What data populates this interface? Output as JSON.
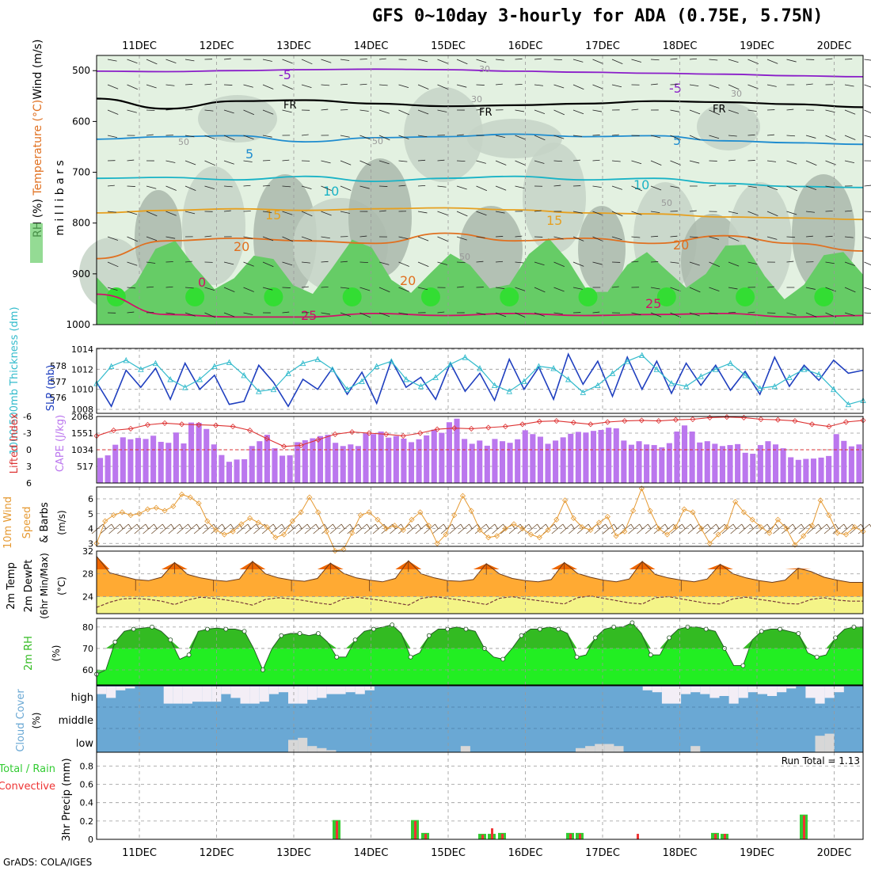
{
  "title": "GFS 0~10day 3-hourly for ADA (0.75E, 5.75N)",
  "credit": "GrADS: COLA/IGES",
  "colors": {
    "rh_light": "#e3f1e1",
    "rh_mid": "#c6d4c7",
    "rh_dark": "#aab8ac",
    "rh_green": "#66cc66",
    "rh_bright": "#33dd33",
    "temp_purple": "#8a1dc9",
    "temp_black": "#000000",
    "temp_blue": "#1e8ccf",
    "temp_cyan": "#19b3c6",
    "temp_orange": "#e6a020",
    "temp_dkorange": "#e07020",
    "temp_magenta": "#d0106a",
    "thick": "#1f3fbf",
    "slp": "#33bbcc",
    "cape": "#bb77ee",
    "li": "#dd3333",
    "wind": "#e69a33",
    "t2m_dark": "#ee6600",
    "t2m": "#ffaa33",
    "dewpt_fill": "#f4f488",
    "rh2m_dark": "#33bb22",
    "rh2m_bright": "#22ee22",
    "rh2m_light": "#55dd55",
    "cloud": "#6aa8d4",
    "cloud_gray": "#d7d7d7",
    "cloud_white": "#f3eef6",
    "rain": "#33cc33",
    "conv": "#ee3333"
  },
  "chart_data": [
    {
      "id": "upper_air",
      "type": "heatmap",
      "ylabel": "m i l l i b a r s",
      "legend": [
        "RH (%)",
        "Temperature (°C)",
        "Wind (m/s)"
      ],
      "yticks": [
        "500",
        "600",
        "700",
        "800",
        "900",
        "1000"
      ],
      "ylim": [
        1000,
        470
      ],
      "xticks": [
        "11DEC",
        "12DEC",
        "13DEC",
        "14DEC",
        "15DEC",
        "16DEC",
        "17DEC",
        "18DEC",
        "19DEC",
        "20DEC"
      ],
      "contour_labels": [
        "-5",
        "FR",
        "5",
        "10",
        "15",
        "20",
        "0",
        "25",
        "30",
        "50"
      ],
      "isotherms": [
        {
          "name": "-5",
          "values": [
            501,
            502,
            500,
            498,
            497,
            498,
            501,
            503,
            505,
            507,
            510,
            512
          ]
        },
        {
          "name": "FR",
          "values": [
            555,
            575,
            560,
            558,
            565,
            570,
            568,
            565,
            560,
            562,
            566,
            572
          ]
        },
        {
          "name": "5",
          "values": [
            635,
            630,
            628,
            640,
            632,
            630,
            625,
            630,
            628,
            638,
            642,
            645
          ]
        },
        {
          "name": "10",
          "values": [
            712,
            710,
            715,
            708,
            718,
            712,
            708,
            715,
            712,
            722,
            728,
            730
          ]
        },
        {
          "name": "15",
          "values": [
            780,
            775,
            772,
            775,
            772,
            770,
            774,
            780,
            782,
            788,
            790,
            793
          ]
        },
        {
          "name": "20",
          "values": [
            870,
            835,
            830,
            835,
            840,
            820,
            835,
            830,
            840,
            825,
            840,
            855
          ]
        },
        {
          "name": "25",
          "values": [
            940,
            980,
            985,
            985,
            978,
            982,
            978,
            982,
            980,
            978,
            985,
            982
          ]
        }
      ]
    },
    {
      "id": "thickness_slp",
      "type": "line",
      "left_label": "1000-500mb Thickness (dm)",
      "right_label": "SLP (mb)",
      "yticks_left": [
        "578",
        "577",
        "576"
      ],
      "yticks_right": [
        "1014",
        "1012",
        "1010",
        "1008"
      ],
      "ylim_slp": [
        1008,
        1014
      ],
      "series": [
        {
          "name": "Thickness",
          "values": [
            1010.7,
            1008.3,
            1011.9,
            1010.2,
            1012.1,
            1009.0,
            1012.6,
            1010.0,
            1011.4,
            1008.5,
            1008.8,
            1012.4,
            1010.7,
            1008.3,
            1011.0,
            1010.0,
            1012.1,
            1009.5,
            1011.7,
            1008.6,
            1012.9,
            1010.2,
            1011.2,
            1009.0,
            1012.6,
            1009.8,
            1011.6,
            1008.9,
            1013.0,
            1010.0,
            1012.2,
            1009.0,
            1013.5,
            1010.5,
            1012.8,
            1009.3,
            1013.2,
            1010.0,
            1012.8,
            1009.6,
            1012.6,
            1010.4,
            1012.4,
            1009.9,
            1011.8,
            1009.5,
            1013.2,
            1010.3,
            1012.4,
            1010.9,
            1012.9,
            1011.6,
            1011.9
          ]
        },
        {
          "name": "SLP",
          "values": [
            1010.6,
            1012.3,
            1012.9,
            1012.0,
            1012.6,
            1011.0,
            1010.2,
            1011.0,
            1012.3,
            1012.7,
            1011.4,
            1009.8,
            1010.0,
            1011.6,
            1012.6,
            1013.0,
            1012.0,
            1010.0,
            1010.8,
            1012.3,
            1012.8,
            1011.0,
            1010.3,
            1011.2,
            1012.5,
            1013.2,
            1012.1,
            1010.4,
            1009.8,
            1010.8,
            1012.3,
            1012.1,
            1011.0,
            1009.7,
            1010.4,
            1011.6,
            1012.8,
            1013.4,
            1012.0,
            1010.6,
            1010.3,
            1011.3,
            1012.0,
            1012.6,
            1011.4,
            1010.1,
            1010.3,
            1011.2,
            1012.0,
            1011.5,
            1010.0,
            1008.5,
            1008.9
          ]
        }
      ]
    },
    {
      "id": "cape_li",
      "type": "bar",
      "left_label": "Lifted Index",
      "right_label": "CAPE (J/kg)",
      "yticks_left": [
        "-6",
        "-3",
        "0",
        "3",
        "6"
      ],
      "yticks_right": [
        "2068",
        "1551",
        "1034",
        "517"
      ],
      "ylim_cape": [
        0,
        2068
      ],
      "series": [
        {
          "name": "CAPE",
          "values": [
            780,
            860,
            1190,
            1420,
            1360,
            1400,
            1370,
            1470,
            1280,
            1250,
            1570,
            1230,
            1880,
            1870,
            1680,
            1200,
            870,
            660,
            730,
            740,
            1150,
            1300,
            1500,
            1080,
            850,
            860,
            1270,
            1330,
            1390,
            1460,
            1500,
            1250,
            1150,
            1200,
            1150,
            1540,
            1520,
            1600,
            1410,
            1460,
            1380,
            1270,
            1360,
            1480,
            1660,
            1560,
            1890,
            2000,
            1370,
            1220,
            1320,
            1160,
            1370,
            1300,
            1250,
            1360,
            1640,
            1520,
            1440,
            1220,
            1320,
            1420,
            1530,
            1590,
            1570,
            1620,
            1650,
            1720,
            1700,
            1320,
            1190,
            1300,
            1200,
            1180,
            1110,
            1240,
            1600,
            1790,
            1600,
            1260,
            1300,
            1220,
            1150,
            1180,
            1210,
            940,
            910,
            1180,
            1300,
            1200,
            1080,
            800,
            720,
            750,
            760,
            790,
            840,
            1520,
            1310,
            1140,
            1200
          ],
          "note": "3-hourly bars"
        },
        {
          "name": "Lifted Index",
          "values": [
            -2.5,
            -3.5,
            -3.8,
            -4.5,
            -4.8,
            -4.6,
            -4.5,
            -4.4,
            -4.2,
            -3.5,
            -2.0,
            -0.6,
            -0.8,
            -1.8,
            -2.8,
            -3.2,
            -3.0,
            -2.8,
            -2.5,
            -3.0,
            -3.7,
            -3.9,
            -3.8,
            -4.0,
            -4.2,
            -4.6,
            -5.1,
            -5.2,
            -4.9,
            -4.6,
            -5.0,
            -5.2,
            -5.3,
            -5.2,
            -5.4,
            -5.5,
            -5.8,
            -5.9,
            -5.8,
            -5.5,
            -5.4,
            -5.2,
            -4.6,
            -4.2,
            -5.0,
            -5.3
          ]
        }
      ]
    },
    {
      "id": "wind10m",
      "type": "line",
      "ylabel": "10m Wind Speed & Barbs (m/s)",
      "yticks": [
        "6",
        "5",
        "4",
        "3"
      ],
      "ylim": [
        2.8,
        6.8
      ],
      "series": [
        {
          "name": "Speed",
          "values": [
            3.0,
            4.5,
            4.9,
            5.1,
            4.9,
            5.0,
            5.3,
            5.4,
            5.2,
            5.5,
            6.3,
            6.1,
            5.7,
            4.5,
            3.9,
            3.6,
            3.8,
            4.3,
            4.7,
            4.4,
            4.1,
            3.4,
            3.6,
            4.5,
            5.1,
            6.1,
            5.1,
            3.8,
            2.5,
            2.6,
            3.7,
            4.9,
            5.1,
            4.6,
            4.0,
            4.2,
            3.9,
            4.6,
            5.1,
            4.2,
            3.0,
            3.6,
            4.9,
            6.2,
            5.2,
            3.9,
            3.4,
            3.5,
            4.0,
            4.3,
            4.0,
            3.6,
            3.4,
            3.9,
            4.6,
            5.9,
            4.7,
            4.1,
            3.9,
            4.4,
            4.8,
            3.5,
            3.8,
            5.2,
            6.7,
            5.2,
            4.0,
            3.6,
            4.1,
            5.3,
            5.1,
            4.0,
            3.0,
            3.6,
            4.1,
            5.8,
            5.1,
            4.6,
            4.1,
            3.7,
            4.6,
            4.0,
            2.9,
            3.5,
            4.2,
            5.9,
            4.9,
            3.7,
            3.6,
            4.1,
            3.8
          ]
        }
      ]
    },
    {
      "id": "temp2m",
      "type": "area",
      "ylabel": "2m Temp 2m DewPt (6hr Min/Max) (°C)",
      "yticks": [
        "32",
        "28",
        "24"
      ],
      "ylim": [
        21,
        32
      ],
      "series": [
        {
          "name": "Temp",
          "values": [
            31.1,
            28.2,
            27.6,
            27.0,
            26.8,
            27.4,
            30.0,
            27.9,
            27.3,
            26.9,
            26.7,
            27.1,
            30.2,
            28.0,
            27.3,
            26.9,
            26.7,
            27.2,
            29.9,
            28.1,
            27.3,
            26.9,
            26.6,
            27.2,
            30.3,
            28.0,
            27.3,
            26.8,
            26.7,
            27.0,
            29.8,
            28.0,
            27.2,
            26.8,
            26.6,
            27.0,
            30.0,
            28.1,
            27.4,
            26.9,
            26.6,
            27.1,
            30.2,
            27.9,
            27.3,
            26.9,
            26.6,
            27.1,
            29.7,
            28.0,
            27.3,
            26.8,
            26.5,
            26.9,
            29.0,
            28.4,
            27.4,
            26.9,
            26.5,
            26.5
          ]
        },
        {
          "name": "DewPt",
          "values": [
            22.1,
            23.0,
            23.6,
            23.7,
            23.5,
            23.2,
            22.6,
            23.4,
            23.9,
            23.7,
            23.4,
            23.0,
            22.5,
            23.5,
            23.8,
            23.6,
            23.3,
            22.9,
            22.6,
            23.6,
            23.9,
            23.6,
            23.3,
            22.9,
            22.5,
            23.7,
            24.0,
            23.7,
            23.4,
            23.0,
            22.6,
            23.7,
            24.0,
            23.6,
            23.3,
            23.0,
            22.7,
            23.8,
            24.1,
            23.7,
            23.3,
            22.9,
            22.7,
            23.8,
            24.0,
            23.6,
            23.2,
            22.8,
            22.7,
            23.6,
            23.9,
            23.5,
            23.2,
            22.8,
            22.7,
            23.5,
            23.8,
            23.4,
            23.2,
            23.2
          ]
        }
      ]
    },
    {
      "id": "rh2m",
      "type": "area",
      "ylabel": "2m RH (%)",
      "yticks": [
        "80",
        "70",
        "60"
      ],
      "ylim": [
        53,
        84
      ],
      "series": [
        {
          "name": "RH",
          "values": [
            58,
            60,
            73,
            78,
            79,
            79.5,
            80,
            78,
            74,
            65,
            67,
            78,
            79,
            79.5,
            79,
            79,
            78,
            70,
            60,
            70,
            76,
            77,
            77,
            76,
            77,
            73,
            66,
            66,
            74,
            78,
            79,
            80,
            81,
            77,
            66,
            68,
            76,
            79,
            79,
            80,
            79,
            78,
            70,
            66,
            65,
            70,
            76,
            79,
            79,
            80,
            79,
            77,
            66,
            67,
            75,
            79,
            80,
            80,
            82,
            77,
            67,
            67,
            75,
            79,
            80,
            80,
            79,
            78,
            70,
            62,
            62,
            74,
            78,
            79,
            79,
            78,
            77,
            68,
            66,
            67,
            75,
            79,
            80,
            80
          ]
        }
      ]
    },
    {
      "id": "cloud",
      "type": "area",
      "ylabel": "Cloud Cover (%)",
      "yticks": [
        "high",
        "middle",
        "low"
      ],
      "series": [
        {
          "name": "high",
          "values": [
            40,
            60,
            20,
            10,
            0,
            0,
            0,
            90,
            90,
            90,
            80,
            80,
            80,
            40,
            60,
            90,
            90,
            80,
            40,
            30,
            90,
            90,
            70,
            60,
            40,
            40,
            30,
            40,
            20,
            0,
            0,
            0,
            0,
            0,
            0,
            0,
            0,
            0,
            0,
            0,
            0,
            0,
            0,
            0,
            0,
            0,
            0,
            0,
            0,
            0,
            0,
            0,
            0,
            0,
            0,
            0,
            0,
            20,
            30,
            90,
            90,
            40,
            30,
            40,
            60,
            50,
            90,
            60,
            30,
            40,
            50,
            30,
            10,
            0,
            60,
            90,
            60,
            30,
            0,
            0
          ]
        },
        {
          "name": "low",
          "values": [
            0,
            0,
            0,
            0,
            0,
            0,
            0,
            0,
            0,
            0,
            0,
            0,
            0,
            0,
            0,
            0,
            0,
            0,
            0,
            0,
            60,
            70,
            30,
            20,
            10,
            0,
            0,
            0,
            0,
            0,
            0,
            0,
            0,
            0,
            0,
            0,
            0,
            0,
            30,
            0,
            0,
            0,
            0,
            0,
            0,
            0,
            0,
            0,
            0,
            0,
            20,
            30,
            40,
            40,
            30,
            0,
            0,
            0,
            0,
            0,
            0,
            0,
            30,
            0,
            0,
            0,
            0,
            0,
            0,
            0,
            0,
            0,
            0,
            0,
            0,
            80,
            90,
            0,
            0,
            0
          ]
        }
      ]
    },
    {
      "id": "precip",
      "type": "bar",
      "ylabel": "3hr Precip (mm)",
      "left_label": "Total / Rain",
      "left_label2": "Convective",
      "yticks": [
        "0.8",
        "0.6",
        "0.4",
        "0.2",
        "0"
      ],
      "ylim": [
        0,
        0.95
      ],
      "annotation": "Run Total = 1.13",
      "series": [
        {
          "name": "Total",
          "values": [
            0,
            0,
            0.21,
            0,
            0.21,
            0.07,
            0,
            0.06,
            0.06,
            0.07,
            0.07,
            0.07,
            0.07,
            0,
            0.07,
            0.07,
            0,
            0.06,
            0.07,
            0,
            0.27
          ]
        },
        {
          "name": "Convective",
          "values": [
            0,
            0,
            0.2,
            0,
            0.2,
            0.06,
            0,
            0.05,
            0.12,
            0.06,
            0.06,
            0.06,
            0.06,
            0.06,
            0.06,
            0.06,
            0.06,
            0.06,
            0.06,
            0.06,
            0.26
          ]
        }
      ]
    }
  ]
}
